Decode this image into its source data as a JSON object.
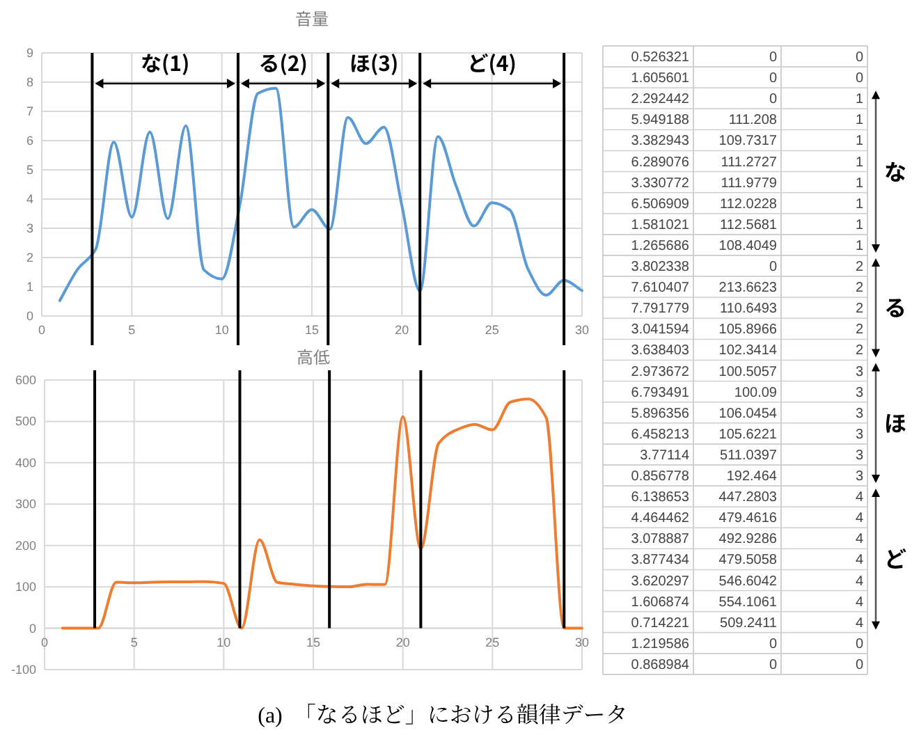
{
  "chart_data": [
    {
      "type": "line",
      "title": "音量",
      "x": [
        1,
        2,
        3,
        4,
        5,
        6,
        7,
        8,
        9,
        10,
        11,
        12,
        13,
        14,
        15,
        16,
        17,
        18,
        19,
        20,
        21,
        22,
        23,
        24,
        25,
        26,
        27,
        28,
        29,
        30
      ],
      "series": [
        {
          "color": "#5b9bd5",
          "values": [
            0.526321,
            1.605601,
            2.292442,
            5.949188,
            3.382943,
            6.289076,
            3.330772,
            6.506909,
            1.581021,
            1.265686,
            3.802338,
            7.610407,
            7.791779,
            3.041594,
            3.638403,
            2.973672,
            6.793491,
            5.896356,
            6.458213,
            3.77114,
            0.856778,
            6.138653,
            4.464462,
            3.078887,
            3.877434,
            3.620297,
            1.606874,
            0.714221,
            1.219586,
            0.868984
          ]
        }
      ],
      "xlim": [
        0,
        30
      ],
      "xticks": [
        0,
        5,
        10,
        15,
        20,
        25,
        30
      ],
      "ylim": [
        0,
        9
      ],
      "yticks": [
        0,
        1,
        2,
        3,
        4,
        5,
        6,
        7,
        8,
        9
      ],
      "grid": true,
      "line_style": "solid",
      "marker": "none",
      "ref_lines": [
        {
          "axis": "x",
          "value": 2.8,
          "color": "#000000"
        },
        {
          "axis": "x",
          "value": 10.9,
          "color": "#000000"
        },
        {
          "axis": "x",
          "value": 15.9,
          "color": "#000000"
        },
        {
          "axis": "x",
          "value": 21,
          "color": "#000000"
        },
        {
          "axis": "x",
          "value": 29,
          "color": "#000000"
        }
      ],
      "annotations": [
        "な(1)",
        "る(2)",
        "ほ(3)",
        "ど(4)",
        "(a)　「なるほど」における韻律データ"
      ]
    },
    {
      "type": "line",
      "title": "高低",
      "x": [
        1,
        2,
        3,
        4,
        5,
        6,
        7,
        8,
        9,
        10,
        11,
        12,
        13,
        14,
        15,
        16,
        17,
        18,
        19,
        20,
        21,
        22,
        23,
        24,
        25,
        26,
        27,
        28,
        29,
        30
      ],
      "series": [
        {
          "color": "#ed7d31",
          "values": [
            0,
            0,
            0,
            111.208,
            109.7317,
            111.2727,
            111.9779,
            112.0228,
            112.5681,
            108.4049,
            0,
            213.6623,
            110.6493,
            105.8966,
            102.3414,
            100.5057,
            100.09,
            106.0454,
            105.6221,
            511.0397,
            192.464,
            447.2803,
            479.4616,
            492.9286,
            479.5058,
            546.6042,
            554.1061,
            509.2411,
            0,
            0
          ]
        }
      ],
      "xlim": [
        0,
        30
      ],
      "xticks": [
        0,
        5,
        10,
        15,
        20,
        25,
        30
      ],
      "ylim": [
        -100,
        600
      ],
      "yticks": [
        -100,
        0,
        100,
        200,
        300,
        400,
        500,
        600
      ],
      "grid": true,
      "line_style": "solid",
      "marker": "none",
      "ref_lines": [
        {
          "axis": "x",
          "value": 2.8,
          "color": "#000000"
        },
        {
          "axis": "x",
          "value": 10.9,
          "color": "#000000"
        },
        {
          "axis": "x",
          "value": 15.9,
          "color": "#000000"
        },
        {
          "axis": "x",
          "value": 21,
          "color": "#000000"
        },
        {
          "axis": "x",
          "value": 29,
          "color": "#000000"
        }
      ]
    },
    {
      "type": "other",
      "cell_labels": [
        [
          "0.526321",
          "0",
          "0"
        ],
        [
          "1.605601",
          "0",
          "0"
        ],
        [
          "2.292442",
          "0",
          "1"
        ],
        [
          "5.949188",
          "111.208",
          "1"
        ],
        [
          "3.382943",
          "109.7317",
          "1"
        ],
        [
          "6.289076",
          "111.2727",
          "1"
        ],
        [
          "3.330772",
          "111.9779",
          "1"
        ],
        [
          "6.506909",
          "112.0228",
          "1"
        ],
        [
          "1.581021",
          "112.5681",
          "1"
        ],
        [
          "1.265686",
          "108.4049",
          "1"
        ],
        [
          "3.802338",
          "0",
          "2"
        ],
        [
          "7.610407",
          "213.6623",
          "2"
        ],
        [
          "7.791779",
          "110.6493",
          "2"
        ],
        [
          "3.041594",
          "105.8966",
          "2"
        ],
        [
          "3.638403",
          "102.3414",
          "2"
        ],
        [
          "2.973672",
          "100.5057",
          "3"
        ],
        [
          "6.793491",
          "100.09",
          "3"
        ],
        [
          "5.896356",
          "106.0454",
          "3"
        ],
        [
          "6.458213",
          "105.6221",
          "3"
        ],
        [
          "3.77114",
          "511.0397",
          "3"
        ],
        [
          "0.856778",
          "192.464",
          "3"
        ],
        [
          "6.138653",
          "447.2803",
          "4"
        ],
        [
          "4.464462",
          "479.4616",
          "4"
        ],
        [
          "3.078887",
          "492.9286",
          "4"
        ],
        [
          "3.877434",
          "479.5058",
          "4"
        ],
        [
          "3.620297",
          "546.6042",
          "4"
        ],
        [
          "1.606874",
          "554.1061",
          "4"
        ],
        [
          "0.714221",
          "509.2411",
          "4"
        ],
        [
          "1.219586",
          "0",
          "0"
        ],
        [
          "0.868984",
          "0",
          "0"
        ]
      ],
      "annotations": [
        "な",
        "る",
        "ほ",
        "ど"
      ]
    }
  ]
}
